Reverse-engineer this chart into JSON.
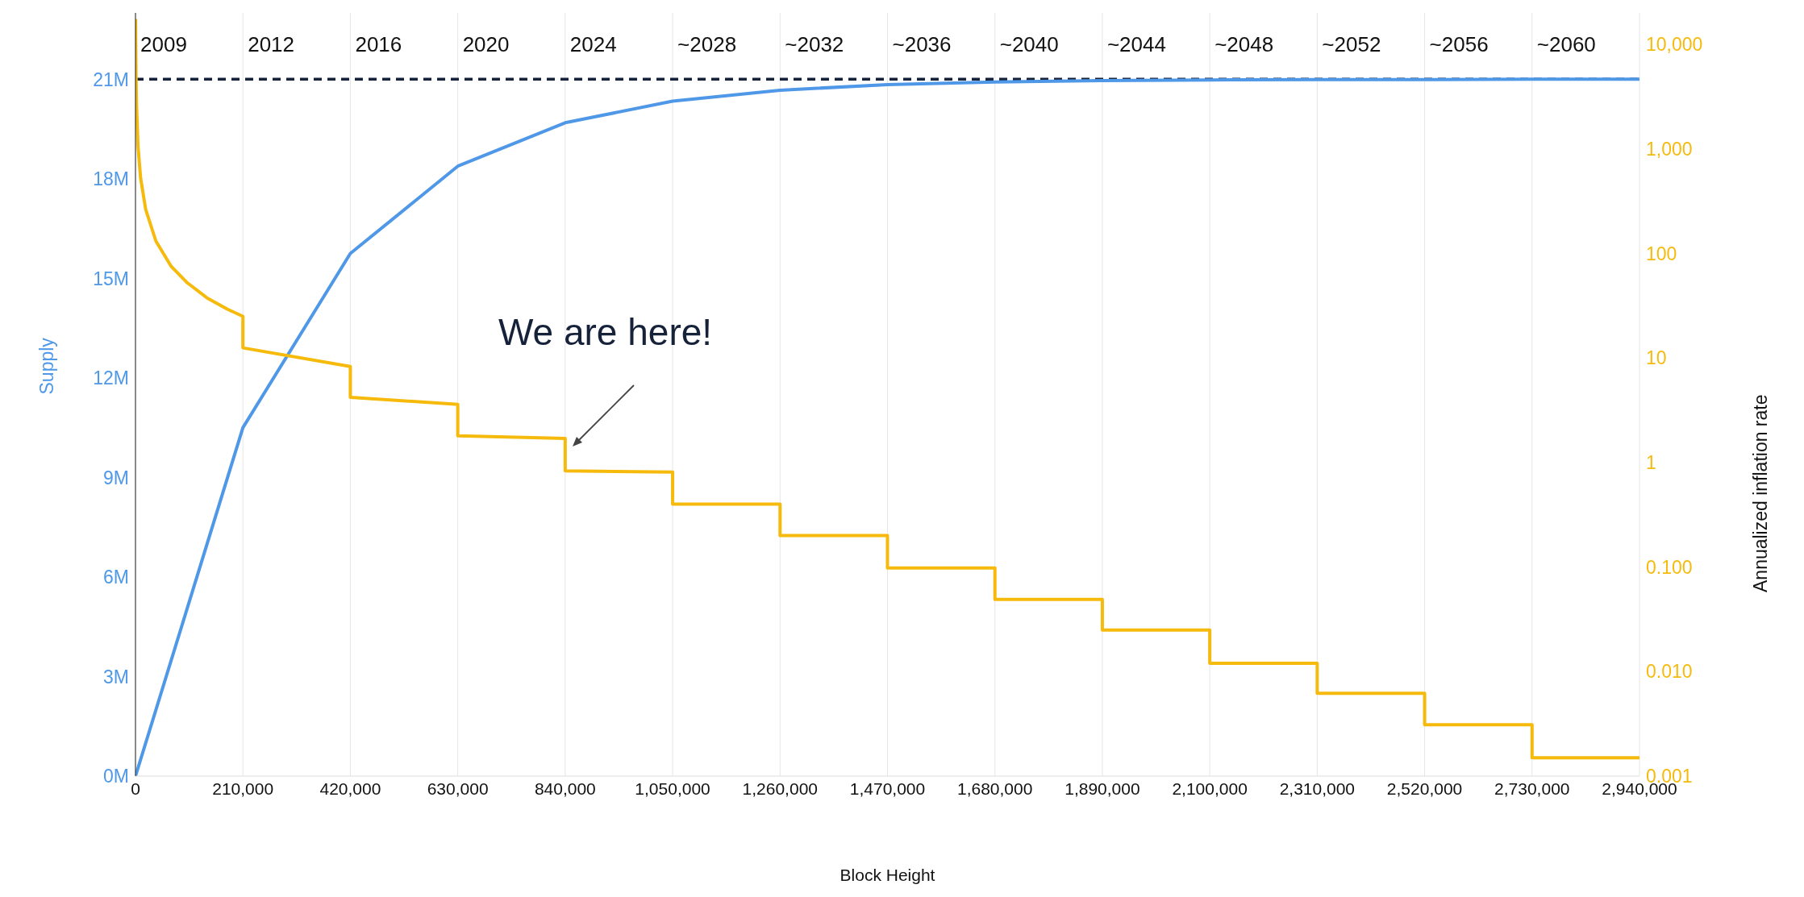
{
  "chart_data": {
    "type": "line",
    "xlabel": "Block Height",
    "ylabel": "Supply",
    "y2label": "Annualized inflation rate",
    "xlim": [
      0,
      2940000
    ],
    "xticks": [
      {
        "value": 0,
        "label": "0"
      },
      {
        "value": 210000,
        "label": "210,000"
      },
      {
        "value": 420000,
        "label": "420,000"
      },
      {
        "value": 630000,
        "label": "630,000"
      },
      {
        "value": 840000,
        "label": "840,000"
      },
      {
        "value": 1050000,
        "label": "1,050,000"
      },
      {
        "value": 1260000,
        "label": "1,260,000"
      },
      {
        "value": 1470000,
        "label": "1,470,000"
      },
      {
        "value": 1680000,
        "label": "1,680,000"
      },
      {
        "value": 1890000,
        "label": "1,890,000"
      },
      {
        "value": 2100000,
        "label": "2,100,000"
      },
      {
        "value": 2310000,
        "label": "2,310,000"
      },
      {
        "value": 2520000,
        "label": "2,520,000"
      },
      {
        "value": 2730000,
        "label": "2,730,000"
      },
      {
        "value": 2940000,
        "label": "2,940,000"
      }
    ],
    "ylim": [
      0,
      23000000
    ],
    "yticks": [
      {
        "value": 0,
        "label": "0M"
      },
      {
        "value": 3000000,
        "label": "3M"
      },
      {
        "value": 6000000,
        "label": "6M"
      },
      {
        "value": 9000000,
        "label": "9M"
      },
      {
        "value": 12000000,
        "label": "12M"
      },
      {
        "value": 15000000,
        "label": "15M"
      },
      {
        "value": 18000000,
        "label": "18M"
      },
      {
        "value": 21000000,
        "label": "21M"
      }
    ],
    "y2lim": [
      0.001,
      20000
    ],
    "y2ticks": [
      {
        "value": 0.001,
        "label": "0.001"
      },
      {
        "value": 0.01,
        "label": "0.010"
      },
      {
        "value": 0.1,
        "label": "0.100"
      },
      1,
      10,
      100,
      {
        "value": 1000,
        "label": "1,000"
      },
      {
        "value": 10000,
        "label": "10,000"
      }
    ],
    "log": "y2",
    "grid": "x",
    "marker": "none",
    "line_style": "solid",
    "ref_lines": [
      {
        "axis": "y",
        "value": 21000000,
        "color": "#16213a",
        "line_style": "dashed"
      }
    ],
    "annotations": [
      "We are here!",
      "2009",
      "2012",
      "2016",
      "2020",
      "2024",
      "~2028",
      "~2032",
      "~2036",
      "~2040",
      "~2044",
      "~2048",
      "~2052",
      "~2056",
      "~2060"
    ],
    "series": [
      {
        "color": "#4f98e8",
        "x": [
          0,
          210000,
          420000,
          630000,
          840000,
          1050000,
          1260000,
          1470000,
          1680000,
          1890000,
          2100000,
          2310000,
          2520000,
          2730000,
          2940000
        ],
        "values": [
          0,
          10500000,
          15750000,
          18380000,
          19690000,
          20340000,
          20670000,
          20840000,
          20920000,
          20960000,
          20980000,
          20990000,
          20990000,
          21000000,
          21000000
        ]
      },
      {
        "color": "#f6ba0c",
        "axis": "y2",
        "x": [
          300,
          500,
          1000,
          2000,
          5000,
          10000,
          20000,
          40000,
          70000,
          100000,
          140000,
          180000,
          210000,
          210000,
          420000,
          420000,
          630000,
          630000,
          840000,
          840000,
          1050000,
          1050000,
          1260000,
          1260000,
          1470000,
          1470000,
          1680000,
          1680000,
          1890000,
          1890000,
          2100000,
          2100000,
          2310000,
          2310000,
          2520000,
          2520000,
          2730000,
          2730000,
          2940000
        ],
        "values": [
          17500,
          10500,
          5260,
          2630,
          1050,
          526,
          263,
          131,
          75,
          53,
          37.5,
          29.2,
          25,
          12.5,
          8.3,
          4.2,
          3.6,
          1.8,
          1.7,
          0.83,
          0.81,
          0.4,
          0.4,
          0.2,
          0.2,
          0.098,
          0.098,
          0.049,
          0.049,
          0.025,
          0.025,
          0.012,
          0.012,
          0.0062,
          0.0062,
          0.0031,
          0.0031,
          0.0015,
          0.0015
        ]
      }
    ]
  }
}
